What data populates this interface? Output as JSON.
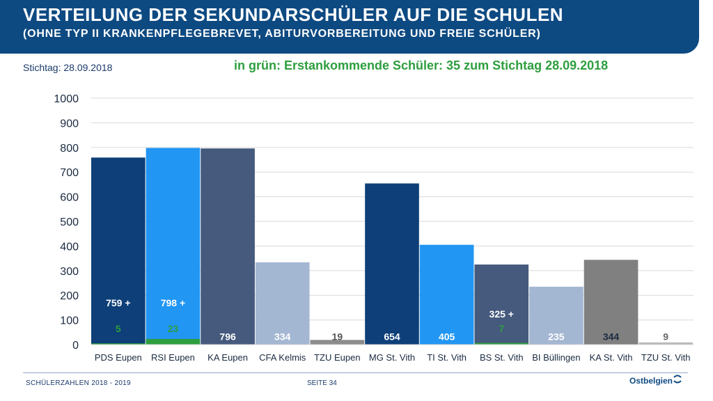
{
  "header": {
    "title": "VERTEILUNG DER SEKUNDARSCHÜLER AUF DIE SCHULEN",
    "subtitle": "(OHNE TYP II KRANKENPFLEGEBREVET, ABITURVORBEREITUNG UND FREIE SCHÜLER)"
  },
  "stichtag": "Stichtag: 28.09.2018",
  "note": "in grün: Erstankommende Schüler: 35 zum Stichtag 28.09.2018",
  "chart_data": {
    "type": "bar",
    "categories": [
      "PDS Eupen",
      "RSI Eupen",
      "KA Eupen",
      "CFA Kelmis",
      "TZU Eupen",
      "MG St. Vith",
      "TI St. Vith",
      "BS St. Vith",
      "BI Büllingen",
      "KA St. Vith",
      "TZU St. Vith"
    ],
    "series": [
      {
        "name": "Schüler",
        "values": [
          759,
          798,
          796,
          334,
          19,
          654,
          405,
          325,
          235,
          344,
          9
        ]
      },
      {
        "name": "Erstankommende Schüler",
        "values": [
          5,
          23,
          0,
          0,
          0,
          0,
          0,
          7,
          0,
          0,
          0
        ]
      }
    ],
    "value_labels": [
      "759 +",
      "798 +",
      "796",
      "334",
      "19",
      "654",
      "405",
      "325 +",
      "235",
      "344",
      "9"
    ],
    "green_labels": [
      "5",
      "23",
      "",
      "",
      "",
      "",
      "",
      "7",
      "",
      "",
      ""
    ],
    "bar_colors": [
      "#0e3f78",
      "#2196f3",
      "#455a7d",
      "#a4b7d2",
      "#8c8c8c",
      "#0e3f78",
      "#2196f3",
      "#455a7d",
      "#a4b7d2",
      "#808080",
      "#b8b8b8"
    ],
    "label_colors": [
      "#ffffff",
      "#ffffff",
      "#ffffff",
      "#ffffff",
      "#555555",
      "#ffffff",
      "#ffffff",
      "#ffffff",
      "#ffffff",
      "#1a2a40",
      "#666666"
    ],
    "green_color": "#2e9e3e",
    "yticks": [
      0,
      100,
      200,
      300,
      400,
      500,
      600,
      700,
      800,
      900,
      1000
    ],
    "ylim": [
      0,
      1000
    ],
    "title": "",
    "xlabel": "",
    "ylabel": ""
  },
  "footer": {
    "left": "SCHÜLERZAHLEN 2018 - 2019",
    "page": "SEITE 34",
    "logo": "Ostbelgien"
  }
}
